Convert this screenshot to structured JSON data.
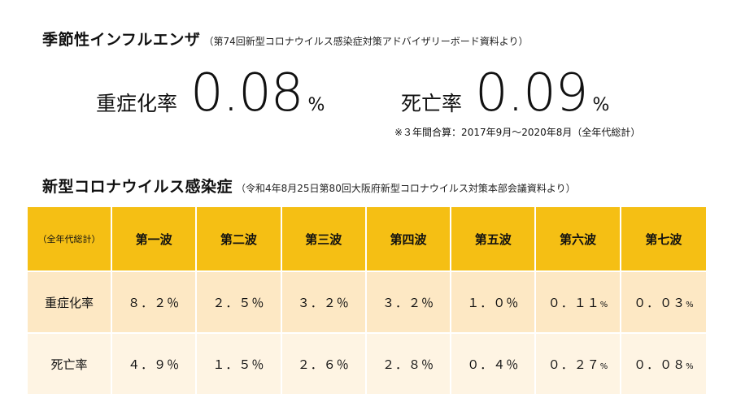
{
  "influenza": {
    "title": "季節性インフルエンザ",
    "source": "（第74回新型コロナウイルス感染症対策アドバイザリーボード資料より）",
    "severe": {
      "label": "重症化率",
      "value": "0.08",
      "unit": "%"
    },
    "death": {
      "label": "死亡率",
      "value": "0.09",
      "unit": "%"
    },
    "note": "※３年間合算：2017年9月～2020年8月（全年代総計）"
  },
  "covid": {
    "title": "新型コロナウイルス感染症",
    "source": "（令和4年8月25日第80回大阪府新型コロナウイルス対策本部会議資料より）",
    "table": {
      "corner_label": "（全年代総計）",
      "waves": [
        "第一波",
        "第二波",
        "第三波",
        "第四波",
        "第五波",
        "第六波",
        "第七波"
      ],
      "rows": [
        {
          "label": "重症化率",
          "values": [
            "８．２",
            "２．５",
            "３．２",
            "３．２",
            "１．０",
            "０．１１",
            "０．０３"
          ],
          "units": [
            "％",
            "％",
            "％",
            "％",
            "％",
            "%",
            "%"
          ]
        },
        {
          "label": "死亡率",
          "values": [
            "４．９",
            "１．５",
            "２．６",
            "２．８",
            "０．４",
            "０．２７",
            "０．０８"
          ],
          "units": [
            "％",
            "％",
            "％",
            "％",
            "％",
            "%",
            "%"
          ]
        }
      ]
    }
  },
  "colors": {
    "header_bg": "#f5bf14",
    "row_severe_bg": "#fde8c4",
    "row_death_bg": "#fef4e3"
  }
}
